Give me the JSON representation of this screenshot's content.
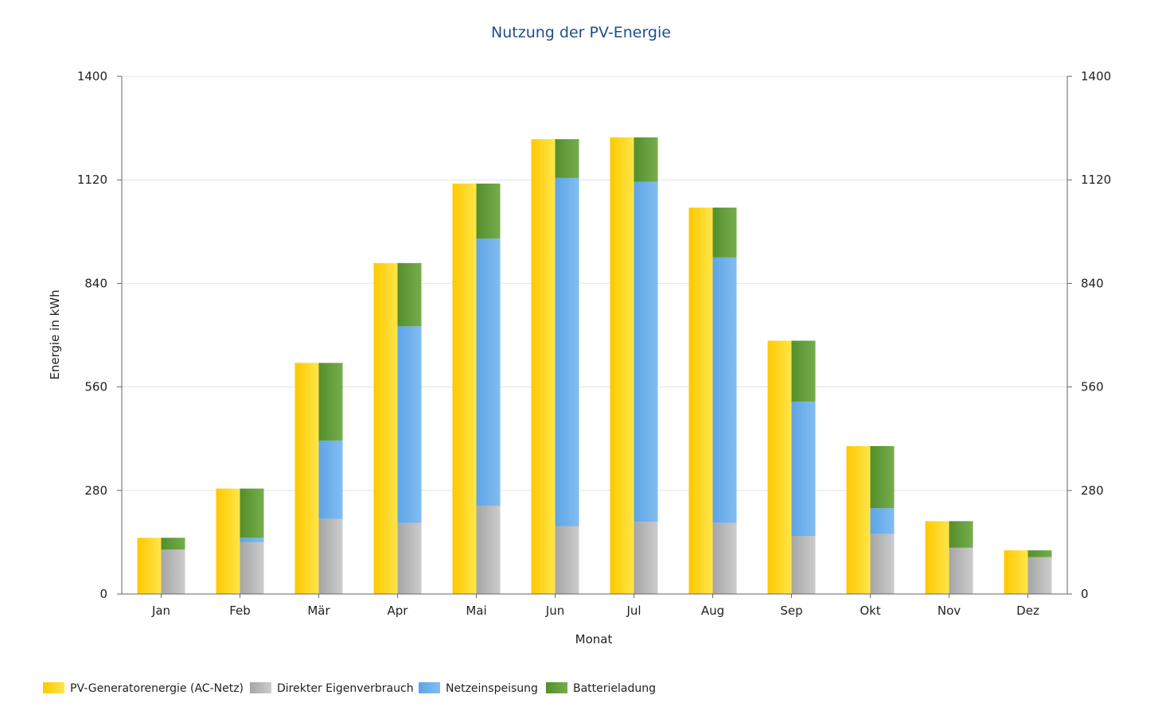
{
  "chart_data": {
    "type": "bar",
    "title": "Nutzung der PV-Energie",
    "xlabel": "Monat",
    "ylabel": "Energie in kWh",
    "ylim": [
      0,
      1400
    ],
    "yticks": [
      "0",
      "280",
      "560",
      "840",
      "1120",
      "1400"
    ],
    "y2ticks": [
      "0",
      "280",
      "560",
      "840",
      "1120",
      "1400"
    ],
    "grid": true,
    "legend_position": "bottom-left",
    "categories": [
      "Jan",
      "Feb",
      "Mär",
      "Apr",
      "Mai",
      "Jun",
      "Jul",
      "Aug",
      "Sep",
      "Okt",
      "Nov",
      "Dez"
    ],
    "series": [
      {
        "name": "PV-Generatorenergie (AC-Netz)",
        "stack": "generator",
        "color": "#ffd500",
        "values": [
          152,
          285,
          625,
          895,
          1110,
          1230,
          1235,
          1045,
          685,
          400,
          197,
          118
        ]
      },
      {
        "name": "Direkter Eigenverbrauch",
        "stack": "usage",
        "color": "#b4b4b4",
        "values": [
          120,
          140,
          203,
          192,
          238,
          183,
          195,
          192,
          157,
          162,
          125,
          100
        ]
      },
      {
        "name": "Netzeinspeisung",
        "stack": "usage",
        "color": "#69aee8",
        "values": [
          0,
          12,
          212,
          532,
          723,
          942,
          920,
          718,
          363,
          70,
          0,
          0
        ]
      },
      {
        "name": "Batterieladung",
        "stack": "usage",
        "color": "#5f9b35",
        "values": [
          32,
          133,
          210,
          171,
          149,
          105,
          120,
          135,
          165,
          168,
          72,
          18
        ]
      }
    ]
  }
}
